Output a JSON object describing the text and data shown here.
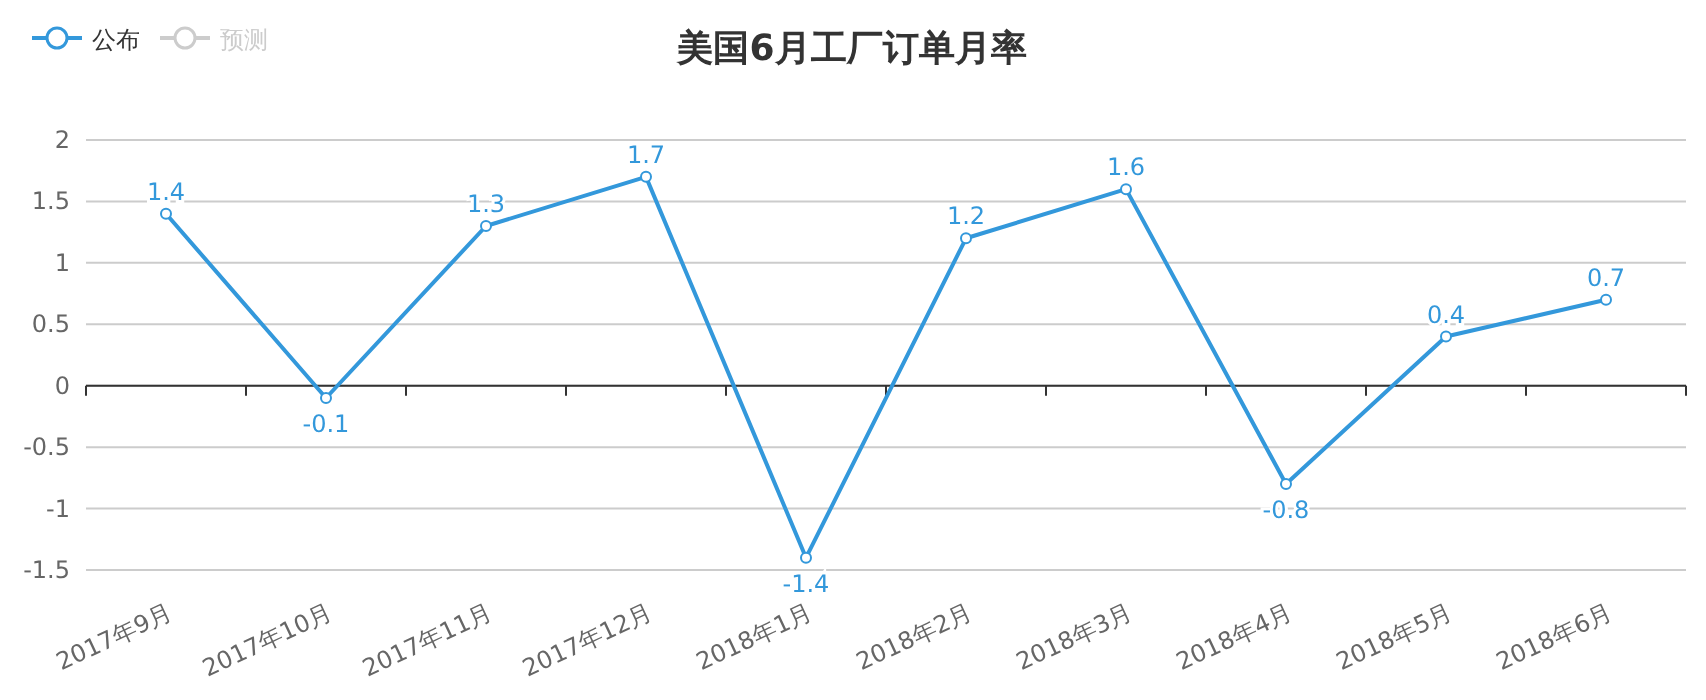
{
  "chart_data": {
    "type": "line",
    "title": "美国6月工厂订单月率",
    "categories": [
      "2017年9月",
      "2017年10月",
      "2017年11月",
      "2017年12月",
      "2018年1月",
      "2018年2月",
      "2018年3月",
      "2018年4月",
      "2018年5月",
      "2018年6月"
    ],
    "series": [
      {
        "name": "公布",
        "color": "#3398db",
        "values": [
          1.4,
          -0.1,
          1.3,
          1.7,
          -1.4,
          1.2,
          1.6,
          -0.8,
          0.4,
          0.7
        ]
      },
      {
        "name": "预测",
        "color": "#cccccc",
        "values": [
          null,
          null,
          null,
          null,
          null,
          null,
          null,
          null,
          null,
          null
        ]
      }
    ],
    "ylim": [
      -1.5,
      2
    ],
    "yticks": [
      -1.5,
      -1,
      -0.5,
      0,
      0.5,
      1,
      1.5,
      2
    ],
    "grid": "y",
    "legend": "top left",
    "marker": "circle",
    "data_labels": true
  }
}
